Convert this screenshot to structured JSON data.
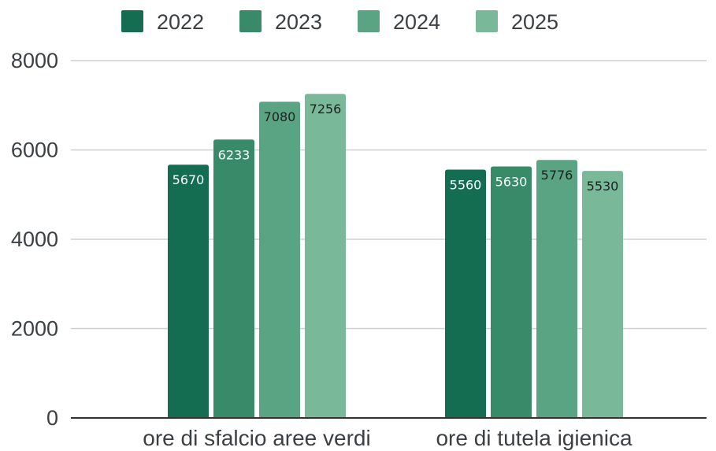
{
  "chart_data": {
    "type": "bar",
    "categories": [
      "ore di sfalcio aree verdi",
      "ore di tutela igienica"
    ],
    "series": [
      {
        "name": "2022",
        "values": [
          5670,
          5560
        ],
        "color": "#146c51"
      },
      {
        "name": "2023",
        "values": [
          6233,
          5630
        ],
        "color": "#388a68"
      },
      {
        "name": "2024",
        "values": [
          7080,
          5776
        ],
        "color": "#5aa483"
      },
      {
        "name": "2025",
        "values": [
          7256,
          5530
        ],
        "color": "#7ab89a"
      }
    ],
    "data_labels": [
      [
        "5670",
        "5560"
      ],
      [
        "6233",
        "5630"
      ],
      [
        "7080",
        "5776"
      ],
      [
        "7256",
        "5530"
      ]
    ],
    "data_label_colors": [
      "#ffffff",
      "#ffffff",
      "#1f1f1f",
      "#1f1f1f"
    ],
    "ylim": [
      0,
      8000
    ],
    "yticks": [
      "0",
      "2000",
      "4000",
      "6000",
      "8000"
    ],
    "title": "",
    "xlabel": "",
    "ylabel": "",
    "grid": true,
    "legend_position": "top-center"
  }
}
